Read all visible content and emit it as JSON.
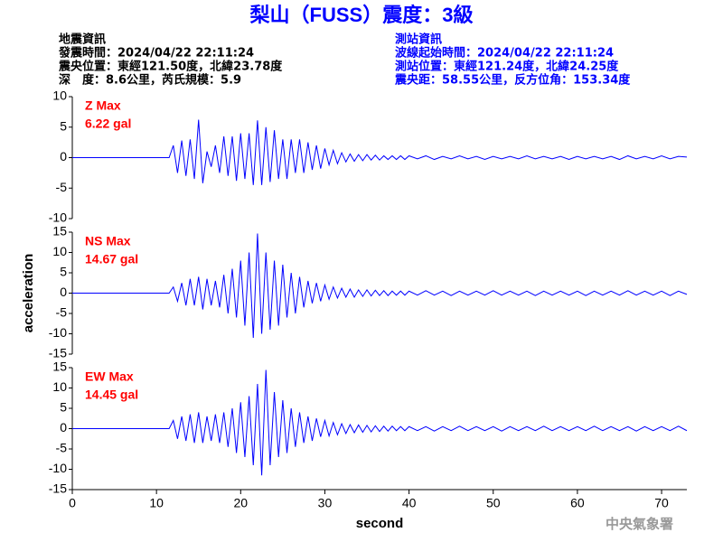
{
  "title": "梨山（FUSS）震度：3級",
  "header": {
    "left": [
      "地震資訊",
      "發震時間：2024/04/22 22:11:24",
      "震央位置：東經121.50度，北緯23.78度",
      "深　度：8.6公里，芮氏規模：5.9"
    ],
    "right": [
      "測站資訊",
      "波線起始時間：2024/04/22 22:11:24",
      "測站位置：東經121.24度，北緯24.25度",
      "震央距：58.55公里，反方位角：153.34度"
    ]
  },
  "footer": "中央氣象署",
  "chart_data": [
    {
      "type": "line",
      "xlim": [
        0,
        73
      ],
      "ylim": [
        -10,
        10
      ],
      "yticks": [
        -10,
        -5,
        0,
        5,
        10
      ],
      "annotations": [
        "Z Max",
        "6.22 gal"
      ],
      "x": [
        0,
        11.5,
        12,
        12.5,
        13,
        13.5,
        14,
        14.5,
        15,
        15.5,
        16,
        16.5,
        17,
        17.5,
        18,
        18.5,
        19,
        19.5,
        20,
        20.5,
        21,
        21.5,
        22,
        22.5,
        23,
        23.5,
        24,
        24.5,
        25,
        25.5,
        26,
        26.5,
        27,
        27.5,
        28,
        28.5,
        29,
        29.5,
        30,
        30.5,
        31,
        31.5,
        32,
        32.5,
        33,
        33.5,
        34,
        34.5,
        35,
        35.5,
        36,
        36.5,
        37,
        37.5,
        38,
        38.5,
        39,
        39.5,
        40,
        41,
        42,
        43,
        44,
        45,
        46,
        47,
        48,
        49,
        50,
        51,
        52,
        53,
        54,
        55,
        56,
        57,
        58,
        59,
        60,
        61,
        62,
        63,
        64,
        65,
        66,
        67,
        68,
        69,
        70,
        71,
        72,
        73
      ],
      "series": [
        {
          "color": "#0000ff",
          "values": [
            0,
            0,
            2,
            -2.5,
            2.8,
            -3,
            3,
            -3.5,
            6.22,
            -4.2,
            1,
            -1.5,
            2,
            -2.5,
            3.5,
            -3,
            3.5,
            -3.8,
            4,
            -3.5,
            4,
            -4.5,
            6.1,
            -4.5,
            5,
            -4,
            4.5,
            -3.5,
            3,
            -3.5,
            3,
            -2.5,
            3,
            -2.5,
            2.5,
            -2,
            2,
            -1.8,
            1.5,
            -1.2,
            1.2,
            -1,
            0.8,
            -0.7,
            0.6,
            -0.6,
            0.5,
            -0.5,
            0.5,
            -0.4,
            0.4,
            -0.4,
            0.3,
            -0.3,
            0.3,
            -0.3,
            0.3,
            -0.3,
            0.3,
            -0.2,
            0.3,
            -0.3,
            0.2,
            -0.2,
            0.3,
            -0.2,
            0.2,
            -0.3,
            0.2,
            -0.2,
            0.2,
            -0.2,
            0.3,
            -0.2,
            0.2,
            -0.2,
            0.2,
            -0.3,
            0.2,
            -0.2,
            0.2,
            -0.2,
            0.2,
            -0.3,
            0.3,
            -0.2,
            0.2,
            -0.2,
            0.3,
            -0.2,
            0.2,
            0.1
          ]
        }
      ]
    },
    {
      "type": "line",
      "xlim": [
        0,
        73
      ],
      "ylim": [
        -15,
        15
      ],
      "yticks": [
        -15,
        -10,
        -5,
        0,
        5,
        10,
        15
      ],
      "ylabel": "acceleration",
      "annotations": [
        "NS Max",
        "14.67 gal"
      ],
      "x": [
        0,
        11.5,
        12,
        12.5,
        13,
        13.5,
        14,
        14.5,
        15,
        15.5,
        16,
        16.5,
        17,
        17.5,
        18,
        18.5,
        19,
        19.5,
        20,
        20.5,
        21,
        21.5,
        22,
        22.5,
        23,
        23.5,
        24,
        24.5,
        25,
        25.5,
        26,
        26.5,
        27,
        27.5,
        28,
        28.5,
        29,
        29.5,
        30,
        30.5,
        31,
        31.5,
        32,
        32.5,
        33,
        33.5,
        34,
        34.5,
        35,
        35.5,
        36,
        36.5,
        37,
        37.5,
        38,
        38.5,
        39,
        39.5,
        40,
        41,
        42,
        43,
        44,
        45,
        46,
        47,
        48,
        49,
        50,
        51,
        52,
        53,
        54,
        55,
        56,
        57,
        58,
        59,
        60,
        61,
        62,
        63,
        64,
        65,
        66,
        67,
        68,
        69,
        70,
        71,
        72,
        73
      ],
      "series": [
        {
          "color": "#0000ff",
          "values": [
            0,
            0,
            1.5,
            -2,
            2.5,
            -3,
            3.5,
            -3,
            4,
            -4,
            3.5,
            -3,
            3,
            -3.5,
            4.5,
            -5,
            6,
            -6,
            8,
            -8,
            10,
            -11,
            14.67,
            -10,
            10,
            -9,
            8,
            -8,
            7,
            -6,
            5,
            -5,
            4,
            -3.5,
            3,
            -2.5,
            2.5,
            -2,
            2,
            -1.5,
            1.5,
            -1.2,
            1.2,
            -1,
            1,
            -1,
            0.8,
            -0.8,
            0.8,
            -0.7,
            0.7,
            -0.6,
            0.6,
            -0.6,
            0.5,
            -0.5,
            0.5,
            -0.5,
            0.5,
            -0.5,
            0.6,
            -0.5,
            0.5,
            -0.6,
            0.5,
            -0.5,
            0.5,
            -0.5,
            0.6,
            -0.5,
            0.5,
            -0.5,
            0.5,
            -0.6,
            0.5,
            -0.5,
            0.5,
            -0.5,
            0.5,
            -0.6,
            0.5,
            -0.5,
            0.5,
            -0.5,
            0.6,
            -0.5,
            0.5,
            -0.5,
            0.5,
            -0.6,
            0.5,
            -0.3
          ]
        }
      ]
    },
    {
      "type": "line",
      "xlim": [
        0,
        73
      ],
      "ylim": [
        -15,
        15
      ],
      "yticks": [
        -15,
        -10,
        -5,
        0,
        5,
        10,
        15
      ],
      "xticks": [
        0,
        10,
        20,
        30,
        40,
        50,
        60,
        70
      ],
      "xlabel": "second",
      "annotations": [
        "EW Max",
        "14.45 gal"
      ],
      "x": [
        0,
        11.5,
        12,
        12.5,
        13,
        13.5,
        14,
        14.5,
        15,
        15.5,
        16,
        16.5,
        17,
        17.5,
        18,
        18.5,
        19,
        19.5,
        20,
        20.5,
        21,
        21.5,
        22,
        22.5,
        23,
        23.5,
        24,
        24.5,
        25,
        25.5,
        26,
        26.5,
        27,
        27.5,
        28,
        28.5,
        29,
        29.5,
        30,
        30.5,
        31,
        31.5,
        32,
        32.5,
        33,
        33.5,
        34,
        34.5,
        35,
        35.5,
        36,
        36.5,
        37,
        37.5,
        38,
        38.5,
        39,
        39.5,
        40,
        41,
        42,
        43,
        44,
        45,
        46,
        47,
        48,
        49,
        50,
        51,
        52,
        53,
        54,
        55,
        56,
        57,
        58,
        59,
        60,
        61,
        62,
        63,
        64,
        65,
        66,
        67,
        68,
        69,
        70,
        71,
        72,
        73
      ],
      "series": [
        {
          "color": "#0000ff",
          "values": [
            0,
            0,
            2,
            -2.5,
            3,
            -3,
            3.5,
            -3.5,
            4,
            -3.5,
            3,
            -3,
            3.5,
            -3.5,
            4,
            -4.5,
            5,
            -6,
            6.5,
            -7,
            8,
            -9,
            11,
            -11.5,
            14.45,
            -9,
            9,
            -7,
            7,
            -6,
            5,
            -4.5,
            4,
            -3.5,
            3,
            -3,
            2.5,
            -2,
            2,
            -1.8,
            1.5,
            -1.5,
            1.2,
            -1.2,
            1,
            -1,
            0.9,
            -0.9,
            0.8,
            -0.8,
            0.7,
            -0.7,
            0.6,
            -0.6,
            0.6,
            -0.5,
            0.5,
            -0.5,
            0.5,
            -0.5,
            0.5,
            -0.6,
            0.5,
            -0.5,
            0.6,
            -0.5,
            0.5,
            -0.5,
            0.5,
            -0.6,
            0.5,
            -0.5,
            0.5,
            -0.5,
            0.6,
            -0.5,
            0.5,
            -0.5,
            0.5,
            -0.5,
            0.6,
            -0.5,
            0.5,
            -0.5,
            0.5,
            -0.6,
            0.5,
            -0.5,
            0.5,
            -0.5,
            0.6,
            -0.5
          ]
        }
      ]
    }
  ]
}
